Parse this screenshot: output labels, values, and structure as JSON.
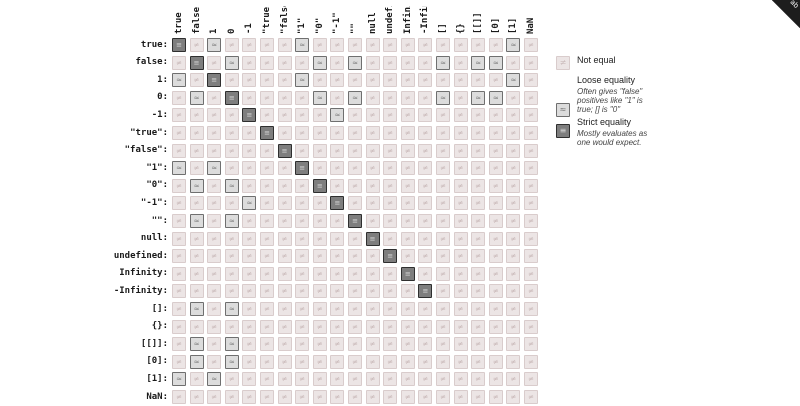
{
  "operands": [
    "true",
    "false",
    "1",
    "0",
    "-1",
    "\"true\"",
    "\"false\"",
    "\"1\"",
    "\"0\"",
    "\"-1\"",
    "\"\"",
    "null",
    "undefined",
    "Infinity",
    "-Infinity",
    "[]",
    "{}",
    "[[]]",
    "[0]",
    "[1]",
    "NaN"
  ],
  "col_labels": [
    "true",
    "false",
    "1",
    "0",
    "-1",
    "\"true\"",
    "\"false\"",
    "\"1\"",
    "\"0\"",
    "\"-1\"",
    "\"\"",
    "null",
    "undefined",
    "Infinity",
    "-Infinity",
    "[]",
    "{}",
    "[[]]",
    "[0]",
    "[1]",
    "NaN"
  ],
  "symbols": {
    "not_equal": "≠",
    "loose": "≈",
    "strict": "≡"
  },
  "loose_pairs": [
    [
      0,
      2
    ],
    [
      0,
      7
    ],
    [
      0,
      19
    ],
    [
      1,
      3
    ],
    [
      1,
      8
    ],
    [
      1,
      10
    ],
    [
      1,
      15
    ],
    [
      1,
      17
    ],
    [
      1,
      18
    ],
    [
      2,
      7
    ],
    [
      2,
      19
    ],
    [
      3,
      8
    ],
    [
      3,
      10
    ],
    [
      3,
      15
    ],
    [
      3,
      17
    ],
    [
      3,
      18
    ],
    [
      4,
      9
    ]
  ],
  "legend": [
    {
      "kind": "not_equal",
      "title": "Not equal",
      "desc": ""
    },
    {
      "kind": "loose",
      "title": "Loose equality",
      "desc": "Often gives \"false\" positives like \"1\" is true; [] is \"0\""
    },
    {
      "kind": "strict",
      "title": "Strict equality",
      "desc": "Mostly evaluates as one would expect."
    }
  ],
  "corner_text": "ab",
  "colors": {
    "not_equal_bg": "#ece5e5",
    "loose_bg": "#dcdcdc",
    "strict_bg": "#7e7e7e"
  }
}
